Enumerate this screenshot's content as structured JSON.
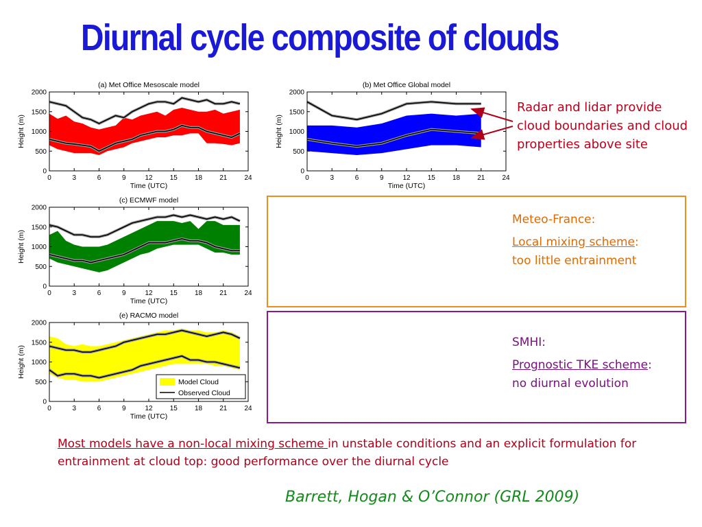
{
  "slide": {
    "title": "Diurnal cycle composite of clouds",
    "annotation": "Radar and lidar provide cloud boundaries and cloud properties above site",
    "meteo_france": {
      "name": "Meteo-France:",
      "scheme": "Local mixing scheme",
      "colon": ":",
      "result": "too little entrainment"
    },
    "smhi": {
      "name": "SMHI:",
      "scheme": "Prognostic TKE scheme",
      "colon": ":",
      "result": "no diurnal evolution"
    },
    "bottom_underlined": "Most models have a non-local mixing scheme ",
    "bottom_rest": "in unstable conditions and an explicit formulation for entrainment at cloud top: good performance over the diurnal cycle",
    "citation": "Barrett, Hogan & O’Connor (GRL 2009)"
  },
  "chart_data": [
    {
      "type": "area",
      "title": "(a) Met Office Mesoscale model",
      "xlabel": "Time (UTC)",
      "ylabel": "Height (m)",
      "xlim": [
        0,
        24
      ],
      "ylim": [
        0,
        2000
      ],
      "xticks": [
        0,
        3,
        6,
        9,
        12,
        15,
        18,
        21,
        24
      ],
      "yticks": [
        0,
        500,
        1000,
        1500,
        2000
      ],
      "fill_color": "#ff0000",
      "x": [
        0,
        1,
        2,
        3,
        4,
        5,
        6,
        7,
        8,
        9,
        10,
        11,
        12,
        13,
        14,
        15,
        16,
        17,
        18,
        19,
        20,
        21,
        22,
        23
      ],
      "model_top": [
        1450,
        1320,
        1400,
        1250,
        1200,
        1100,
        1050,
        1100,
        1150,
        1350,
        1300,
        1400,
        1450,
        1500,
        1400,
        1550,
        1600,
        1550,
        1500,
        1500,
        1550,
        1450,
        1500,
        1550
      ],
      "model_base": [
        650,
        550,
        500,
        450,
        450,
        450,
        400,
        500,
        550,
        600,
        700,
        750,
        800,
        850,
        850,
        900,
        900,
        950,
        950,
        700,
        700,
        680,
        650,
        700
      ],
      "observed_top": [
        1750,
        1700,
        1650,
        1500,
        1350,
        1300,
        1200,
        1300,
        1400,
        1350,
        1500,
        1600,
        1700,
        1750,
        1750,
        1700,
        1850,
        1800,
        1750,
        1800,
        1700,
        1700,
        1750,
        1700
      ],
      "observed_base": [
        800,
        750,
        700,
        680,
        650,
        620,
        500,
        600,
        700,
        750,
        800,
        900,
        950,
        1000,
        1000,
        1050,
        1150,
        1100,
        1100,
        1000,
        950,
        900,
        850,
        950
      ]
    },
    {
      "type": "area",
      "title": "(b) Met Office Global model",
      "xlabel": "Time (UTC)",
      "ylabel": "Height (m)",
      "xlim": [
        0,
        24
      ],
      "ylim": [
        0,
        2000
      ],
      "xticks": [
        0,
        3,
        6,
        9,
        12,
        15,
        18,
        21,
        24
      ],
      "yticks": [
        0,
        500,
        1000,
        1500,
        2000
      ],
      "fill_color": "#0000ff",
      "x": [
        0,
        3,
        6,
        9,
        12,
        15,
        18,
        21
      ],
      "model_top": [
        1150,
        1150,
        1100,
        1200,
        1400,
        1450,
        1400,
        1450
      ],
      "model_base": [
        500,
        450,
        400,
        450,
        550,
        650,
        650,
        600
      ],
      "observed_top": [
        1750,
        1400,
        1300,
        1450,
        1700,
        1750,
        1700,
        1700
      ],
      "observed_base": [
        800,
        700,
        620,
        700,
        900,
        1050,
        1000,
        950
      ]
    },
    {
      "type": "area",
      "title": "(c) ECMWF model",
      "xlabel": "Time (UTC)",
      "ylabel": "Height (m)",
      "xlim": [
        0,
        24
      ],
      "ylim": [
        0,
        2000
      ],
      "xticks": [
        0,
        3,
        6,
        9,
        12,
        15,
        18,
        21,
        24
      ],
      "yticks": [
        0,
        500,
        1000,
        1500,
        2000
      ],
      "fill_color": "#008000",
      "x": [
        0,
        1,
        2,
        3,
        4,
        5,
        6,
        7,
        8,
        9,
        10,
        11,
        12,
        13,
        14,
        15,
        16,
        17,
        18,
        19,
        20,
        21,
        22,
        23
      ],
      "model_top": [
        1300,
        1400,
        1150,
        1050,
        1000,
        1000,
        1000,
        1050,
        1150,
        1250,
        1350,
        1450,
        1550,
        1650,
        1650,
        1650,
        1600,
        1650,
        1450,
        1650,
        1650,
        1550,
        1550,
        1550
      ],
      "model_base": [
        700,
        600,
        550,
        500,
        450,
        400,
        350,
        400,
        500,
        600,
        700,
        800,
        850,
        950,
        1000,
        1050,
        1050,
        1050,
        1050,
        950,
        850,
        850,
        800,
        800
      ],
      "observed_top": [
        1550,
        1500,
        1400,
        1300,
        1300,
        1250,
        1250,
        1300,
        1400,
        1500,
        1600,
        1650,
        1700,
        1750,
        1750,
        1800,
        1750,
        1800,
        1750,
        1700,
        1750,
        1700,
        1750,
        1650
      ],
      "observed_base": [
        800,
        750,
        700,
        650,
        650,
        600,
        650,
        700,
        750,
        800,
        900,
        1000,
        1100,
        1100,
        1100,
        1150,
        1200,
        1150,
        1150,
        1100,
        1000,
        950,
        900,
        900
      ]
    },
    {
      "type": "area",
      "title": "(e) RACMO model",
      "xlabel": "Time (UTC)",
      "ylabel": "Height (m)",
      "xlim": [
        0,
        24
      ],
      "ylim": [
        0,
        2000
      ],
      "xticks": [
        0,
        3,
        6,
        9,
        12,
        15,
        18,
        21,
        24
      ],
      "yticks": [
        0,
        500,
        1000,
        1500,
        2000
      ],
      "fill_color": "#ffff00",
      "legend": [
        "Model Cloud",
        "Observed Cloud"
      ],
      "legend_position": "bottom-right",
      "x": [
        0,
        1,
        2,
        3,
        4,
        5,
        6,
        7,
        8,
        9,
        10,
        11,
        12,
        13,
        14,
        15,
        16,
        17,
        18,
        19,
        20,
        21,
        22,
        23
      ],
      "model_top": [
        1650,
        1600,
        1450,
        1400,
        1450,
        1400,
        1400,
        1450,
        1500,
        1550,
        1600,
        1650,
        1700,
        1750,
        1800,
        1800,
        1850,
        1800,
        1800,
        1750,
        1750,
        1800,
        1750,
        1650
      ],
      "model_base": [
        700,
        600,
        550,
        550,
        500,
        500,
        500,
        550,
        600,
        650,
        700,
        750,
        800,
        850,
        900,
        950,
        950,
        950,
        950,
        950,
        900,
        900,
        850,
        800
      ],
      "observed_top": [
        1400,
        1350,
        1300,
        1300,
        1250,
        1250,
        1300,
        1350,
        1400,
        1500,
        1550,
        1600,
        1650,
        1700,
        1700,
        1750,
        1800,
        1750,
        1700,
        1650,
        1700,
        1750,
        1700,
        1600
      ],
      "observed_base": [
        800,
        650,
        700,
        700,
        650,
        650,
        600,
        650,
        700,
        750,
        800,
        900,
        950,
        1000,
        1050,
        1100,
        1150,
        1050,
        1050,
        1000,
        1000,
        950,
        900,
        850
      ]
    }
  ]
}
